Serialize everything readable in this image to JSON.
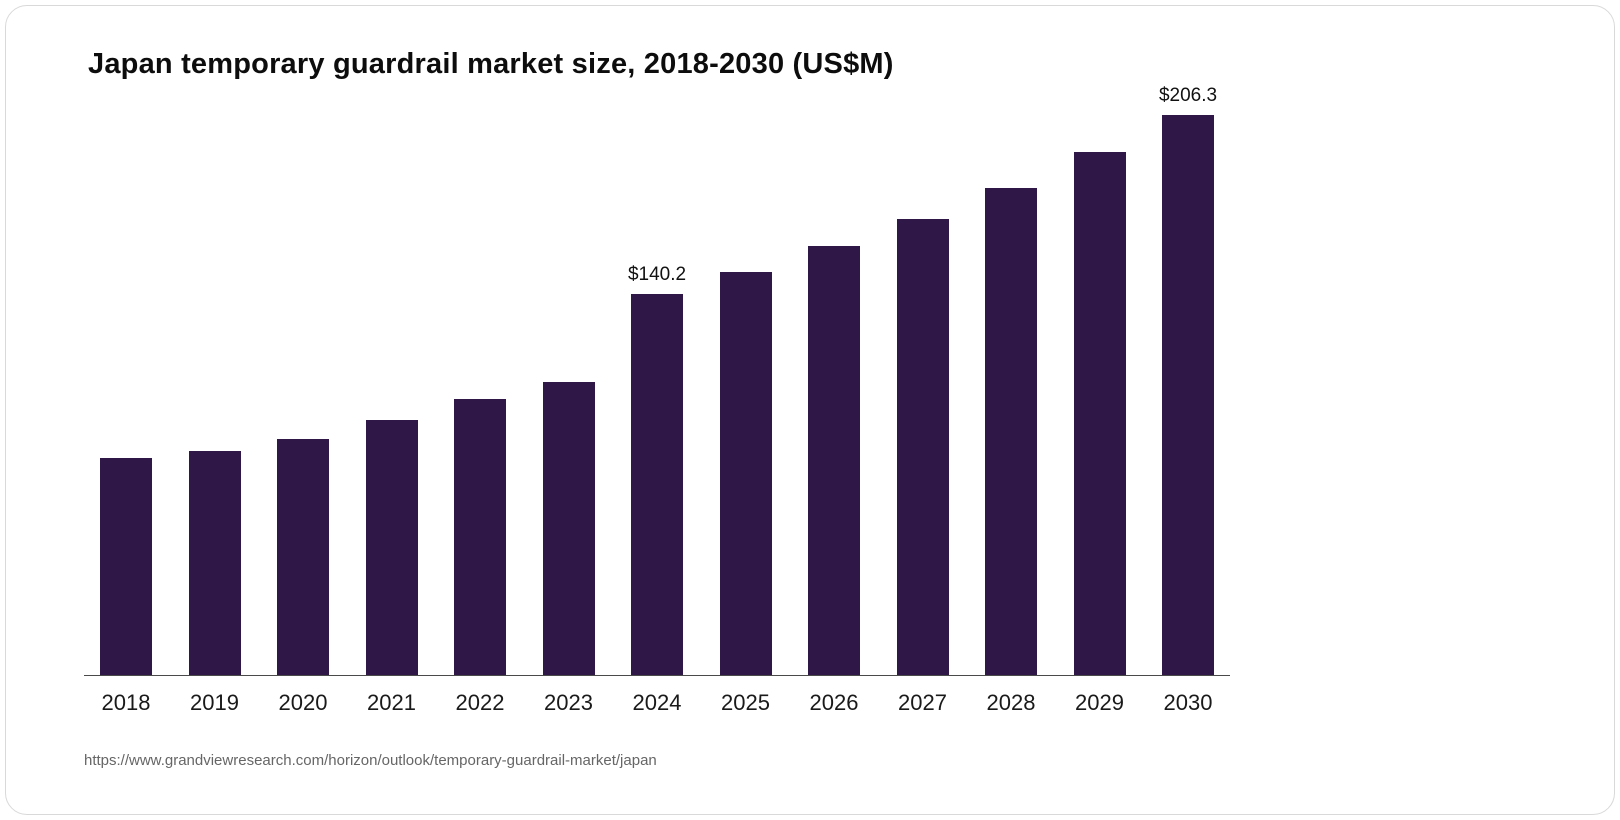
{
  "card": {
    "title": "Japan temporary guardrail market size, 2018-2030 (US$M)",
    "source": "https://www.grandviewresearch.com/horizon/outlook/temporary-guardrail-market/japan"
  },
  "chart_data": {
    "type": "bar",
    "title": "Japan temporary guardrail market size, 2018-2030 (US$M)",
    "categories": [
      "2018",
      "2019",
      "2020",
      "2021",
      "2022",
      "2023",
      "2024",
      "2025",
      "2026",
      "2027",
      "2028",
      "2029",
      "2030"
    ],
    "values": [
      79.9,
      82.5,
      87.0,
      94.0,
      101.5,
      108.0,
      140.2,
      148.5,
      158.0,
      168.0,
      179.5,
      192.5,
      206.3
    ],
    "data_labels": [
      "",
      "",
      "",
      "",
      "",
      "",
      "$140.2",
      "",
      "",
      "",
      "",
      "",
      "$206.3"
    ],
    "bar_color": "#2f1747",
    "xlabel": "",
    "ylabel": "",
    "ylim": [
      0,
      210
    ],
    "grid": false,
    "legend": false,
    "source": "https://www.grandviewresearch.com/horizon/outlook/temporary-guardrail-market/japan"
  }
}
